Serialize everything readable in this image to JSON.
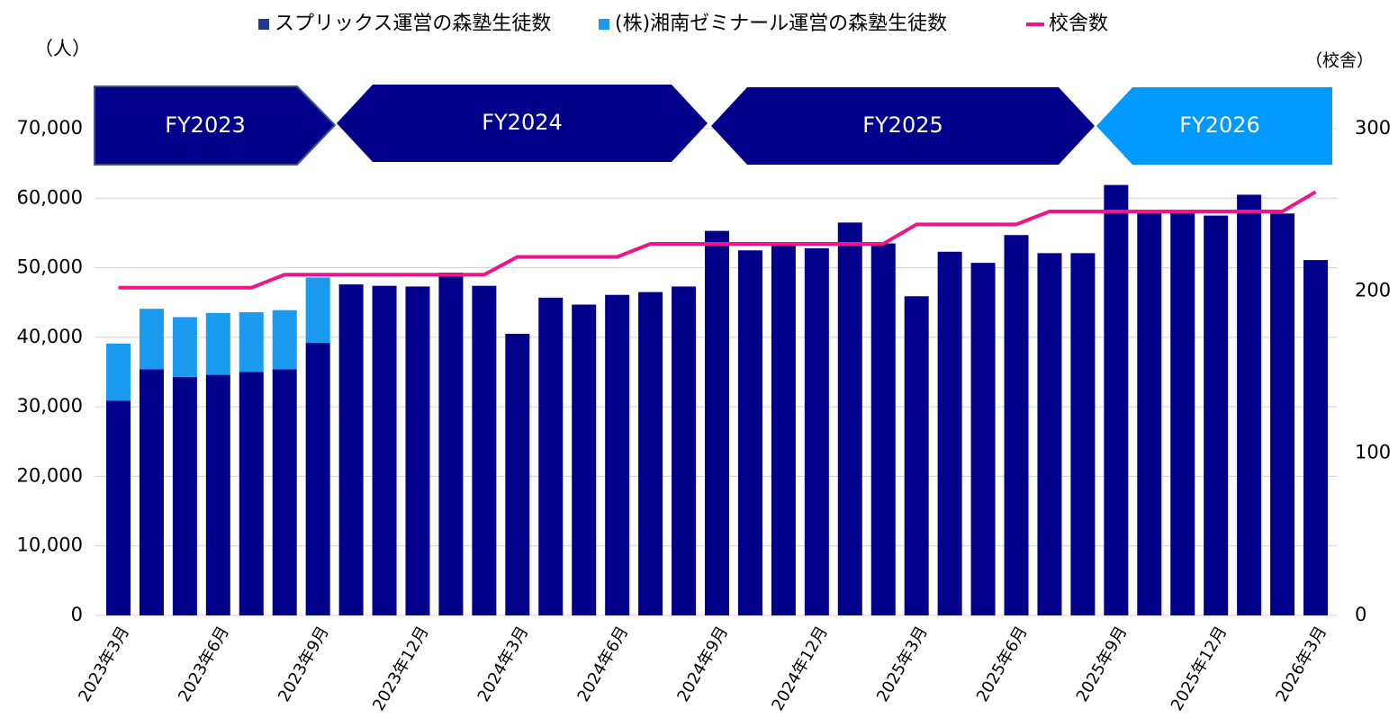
{
  "chart_data": {
    "type": "bar",
    "annotations": [
      "FY2023",
      "FY2024",
      "FY2025",
      "FY2026"
    ],
    "ylabel": "（人）",
    "y2label": "（校舎）",
    "categories": [
      "2023年3月",
      null,
      null,
      "2023年6月",
      null,
      null,
      "2023年9月",
      null,
      null,
      "2023年12月",
      null,
      null,
      "2024年3月",
      null,
      null,
      "2024年6月",
      null,
      null,
      "2024年9月",
      null,
      null,
      "2024年12月",
      null,
      null,
      "2025年3月",
      null,
      null,
      "2025年6月",
      null,
      null,
      "2025年9月",
      null,
      null,
      "2025年12月",
      null,
      null,
      "2026年3月"
    ],
    "series": [
      {
        "name": "スプリックス運営の森塾生徒数",
        "color": "#00008b",
        "legend_color": "#1f3b8c",
        "values": [
          30900,
          35400,
          34300,
          34600,
          35000,
          35400,
          39200,
          47600,
          47400,
          47300,
          49300,
          47400,
          40500,
          45700,
          44700,
          46100,
          46500,
          47300,
          55300,
          52500,
          53500,
          52800,
          56500,
          53500,
          45900,
          52300,
          50700,
          54700,
          52100,
          52100,
          61900,
          57900,
          58000,
          57500,
          60500,
          57800,
          51100
        ]
      },
      {
        "name": "(株)湘南ゼミナール運営の森塾生徒数",
        "color": "#1a9bf0",
        "values": [
          8200,
          8700,
          8600,
          8900,
          8600,
          8500,
          9400,
          null,
          null,
          null,
          null,
          null,
          null,
          null,
          null,
          null,
          null,
          null,
          null,
          null,
          null,
          null,
          null,
          null,
          null,
          null,
          null,
          null,
          null,
          null,
          null,
          null,
          null,
          null,
          null,
          null,
          null
        ]
      },
      {
        "name": "校舎数",
        "color": "#f0148c",
        "axis": "y2",
        "type": "line",
        "values": [
          202,
          202,
          202,
          202,
          202,
          210,
          210,
          210,
          210,
          210,
          210,
          210,
          221,
          221,
          221,
          221,
          229,
          229,
          229,
          229,
          229,
          229,
          229,
          229,
          241,
          241,
          241,
          241,
          249,
          249,
          249,
          249,
          249,
          249,
          249,
          249,
          261
        ]
      }
    ],
    "ylim": [
      0,
      70000
    ],
    "yticks": [
      0,
      {
        "value": 10000,
        "label": "10,000"
      },
      {
        "value": 20000,
        "label": "20,000"
      },
      {
        "value": 30000,
        "label": "30,000"
      },
      {
        "value": 40000,
        "label": "40,000"
      },
      {
        "value": 50000,
        "label": "50,000"
      },
      {
        "value": 60000,
        "label": "60,000"
      },
      {
        "value": 70000,
        "label": "70,000"
      }
    ],
    "y2lim": [
      0,
      300
    ],
    "y2ticks": [
      0,
      100,
      200,
      300
    ],
    "grid": true
  }
}
